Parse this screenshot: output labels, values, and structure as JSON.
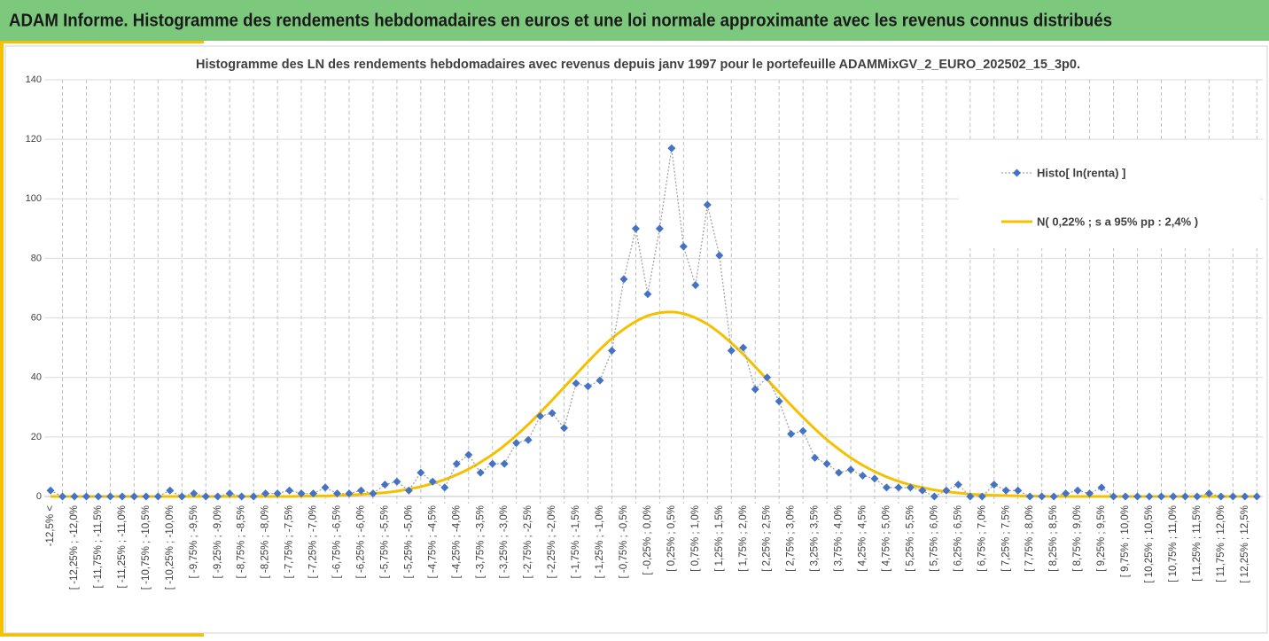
{
  "page_title": "ADAM Informe. Histogramme des rendements hebdomadaires en euros et une loi normale approximante avec les revenus connus distribués",
  "chart_data": {
    "type": "line",
    "title": "Histogramme des LN des rendements hebdomadaires avec revenus depuis janv 1997 pour le portefeuille ADAMMixGV_2_EURO_202502_15_3p0.",
    "categories": [
      "-12,5% <",
      null,
      "[ -12,25% ; -12,0%",
      null,
      "[ -11,75% ; -11,5%",
      null,
      "[ -11,25% ; -11,0%",
      null,
      "[ -10,75% ; -10,5%",
      null,
      "[ -10,25% ; -10,0%",
      null,
      "[ -9,75% ; -9,5%",
      null,
      "[ -9,25% ; -9,0%",
      null,
      "[ -8,75% ; -8,5%",
      null,
      "[ -8,25% ; -8,0%",
      null,
      "[ -7,75% ; -7,5%",
      null,
      "[ -7,25% ; -7,0%",
      null,
      "[ -6,75% ; -6,5%",
      null,
      "[ -6,25% ; -6,0%",
      null,
      "[ -5,75% ; -5,5%",
      null,
      "[ -5,25% ; -5,0%",
      null,
      "[ -4,75% ; -4,5%",
      null,
      "[ -4,25% ; -4,0%",
      null,
      "[ -3,75% ; -3,5%",
      null,
      "[ -3,25% ; -3,0%",
      null,
      "[ -2,75% ; -2,5%",
      null,
      "[ -2,25% ; -2,0%",
      null,
      "[ -1,75% ; -1,5%",
      null,
      "[ -1,25% ; -1,0%",
      null,
      "[ -0,75% ; -0,5%",
      null,
      "[ -0,25% ; 0,0%",
      null,
      "[ 0,25% ; 0,5%",
      null,
      "[ 0,75% ; 1,0%",
      null,
      "[ 1,25% ; 1,5%",
      null,
      "[ 1,75% ; 2,0%",
      null,
      "[ 2,25% ; 2,5%",
      null,
      "[ 2,75% ; 3,0%",
      null,
      "[ 3,25% ; 3,5%",
      null,
      "[ 3,75% ; 4,0%",
      null,
      "[ 4,25% ; 4,5%",
      null,
      "[ 4,75% ; 5,0%",
      null,
      "[ 5,25% ; 5,5%",
      null,
      "[ 5,75% ; 6,0%",
      null,
      "[ 6,25% ; 6,5%",
      null,
      "[ 6,75% ; 7,0%",
      null,
      "[ 7,25% ; 7,5%",
      null,
      "[ 7,75% ; 8,0%",
      null,
      "[ 8,25% ; 8,5%",
      null,
      "[ 8,75% ; 9,0%",
      null,
      "[ 9,25% ; 9,5%",
      null,
      "[ 9,75% ; 10,0%",
      null,
      "[ 10,25% ; 10,5%",
      null,
      "[ 10,75% ; 11,0%",
      null,
      "[ 11,25% ; 11,5%",
      null,
      "[ 11,75% ; 12,0%",
      null,
      "[ 12,25% ; 12,5%",
      null
    ],
    "series": [
      {
        "name": "Histo[ ln(renta) ]",
        "color": "#4472c4",
        "line_color": "#a5a5a5",
        "values": [
          2,
          0,
          0,
          0,
          0,
          0,
          0,
          0,
          0,
          0,
          2,
          0,
          1,
          0,
          0,
          1,
          0,
          0,
          1,
          1,
          2,
          1,
          1,
          3,
          1,
          1,
          2,
          1,
          4,
          5,
          2,
          8,
          5,
          3,
          11,
          14,
          8,
          11,
          11,
          18,
          19,
          27,
          28,
          23,
          38,
          37,
          39,
          49,
          73,
          90,
          68,
          90,
          117,
          84,
          71,
          98,
          81,
          49,
          50,
          36,
          40,
          32,
          21,
          22,
          13,
          11,
          8,
          9,
          7,
          6,
          3,
          3,
          3,
          2,
          0,
          2,
          4,
          0,
          0,
          4,
          2,
          2,
          0,
          0,
          0,
          1,
          2,
          1,
          3,
          0,
          0,
          0,
          0,
          0,
          0,
          0,
          0,
          1,
          0,
          0,
          0,
          0
        ]
      },
      {
        "name": "N( 0,22% ; s a 95% pp : 2,4% )",
        "color": "#f5c000",
        "values": [
          0,
          0,
          0,
          0,
          0,
          0,
          0,
          0,
          0,
          0,
          0,
          0,
          0,
          0,
          0,
          0,
          0,
          0,
          0,
          0,
          0,
          0.1,
          0.2,
          0.2,
          0.3,
          0.5,
          0.7,
          1.0,
          1.3,
          1.8,
          2.5,
          3.3,
          4.4,
          5.7,
          7.3,
          9.2,
          11.5,
          14.1,
          17.1,
          20.5,
          24.2,
          28.2,
          32.4,
          36.7,
          41.0,
          45.3,
          49.4,
          53.1,
          56.2,
          58.8,
          60.7,
          61.7,
          62.0,
          61.4,
          60.0,
          57.9,
          55.0,
          51.6,
          47.8,
          43.6,
          39.3,
          35.0,
          30.7,
          26.6,
          22.7,
          19.1,
          15.9,
          13.0,
          10.5,
          8.4,
          6.6,
          5.1,
          3.9,
          3.0,
          2.2,
          1.6,
          1.2,
          0.8,
          0.6,
          0.4,
          0.3,
          0.2,
          0.1,
          0.1,
          0,
          0,
          0,
          0,
          0,
          0,
          0,
          0,
          0,
          0,
          0,
          0,
          0,
          0,
          0,
          0,
          0,
          0
        ]
      }
    ],
    "ylim": [
      0,
      140
    ],
    "yticks": [
      0,
      20,
      40,
      60,
      80,
      100,
      120,
      140
    ],
    "grid": true,
    "legend": "right"
  }
}
